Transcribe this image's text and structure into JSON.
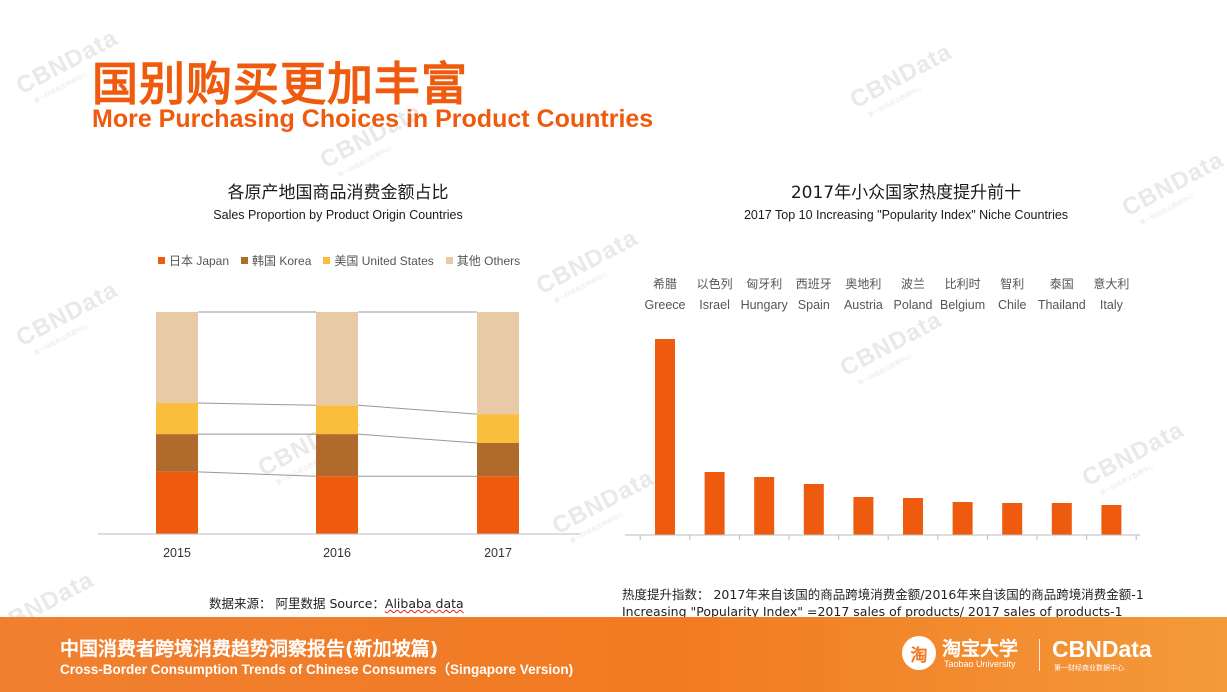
{
  "header": {
    "title_cn": "国别购买更加丰富",
    "title_en": "More Purchasing Choices in Product Countries"
  },
  "watermark": {
    "text": "CBNData",
    "subtext": "第一财经商业数据中心"
  },
  "left_chart": {
    "title_cn": "各原产地国商品消费金额占比",
    "title_en": "Sales Proportion by Product Origin Countries",
    "source": "数据来源： 阿里数据  Source：Alibaba data",
    "source_prefix": "数据来源： 阿里数据  Source：",
    "source_underlined": "Alibaba data"
  },
  "right_chart": {
    "title_cn": "2017年小众国家热度提升前十",
    "title_en": "2017 Top 10 Increasing \"Popularity Index\" Niche Countries",
    "formula_cn": "热度提升指数：  2017年来自该国的商品跨境消费金额/2016年来自该国的商品跨境消费金额-1",
    "formula_en": "Increasing \"Popularity Index\" =2017 sales of products/ 2017 sales of products-1"
  },
  "footer": {
    "title_cn": "中国消费者跨境消费趋势洞察报告(新加坡篇)",
    "title_en": "Cross-Border Consumption Trends of Chinese Consumers（Singapore Version)",
    "logo_icon": "淘",
    "logo_taobao_cn": "淘宝大学",
    "logo_taobao_en": "Taobao University",
    "logo_cbn": "CBNData",
    "logo_cbn_sub": "第一财经商业数据中心"
  },
  "colors": {
    "accent": "#ee5a0e",
    "japan": "#ee5a0e",
    "korea": "#b06a2c",
    "us": "#fbbd3c",
    "others": "#e8cba6",
    "bar": "#ee5a0e"
  },
  "chart_data": [
    {
      "type": "bar",
      "stacked": true,
      "percent": true,
      "title": "各原产地国商品消费金额占比",
      "subtitle": "Sales Proportion by Product Origin Countries",
      "categories": [
        "2015",
        "2016",
        "2017"
      ],
      "ylim": [
        0,
        100
      ],
      "legend_position": "top",
      "connector_lines": true,
      "series": [
        {
          "name": "日本 Japan",
          "color": "#ee5a0e",
          "values": [
            28,
            26,
            26
          ]
        },
        {
          "name": "韩国 Korea",
          "color": "#b06a2c",
          "values": [
            17,
            19,
            15
          ]
        },
        {
          "name": "美国 United States",
          "color": "#fbbd3c",
          "values": [
            14,
            13,
            13
          ]
        },
        {
          "name": "其他 Others",
          "color": "#e8cba6",
          "values": [
            41,
            42,
            46
          ]
        }
      ]
    },
    {
      "type": "bar",
      "title": "2017年小众国家热度提升前十",
      "subtitle": "2017 Top 10 Increasing \"Popularity Index\" Niche Countries",
      "categories_cn": [
        "希腊",
        "以色列",
        "匈牙利",
        "西班牙",
        "奥地利",
        "波兰",
        "比利时",
        "智利",
        "泰国",
        "意大利"
      ],
      "categories": [
        "Greece",
        "Israel",
        "Hungary",
        "Spain",
        "Austria",
        "Poland",
        "Belgium",
        "Chile",
        "Thailand",
        "Italy"
      ],
      "values": [
        196,
        63,
        58,
        51,
        38,
        37,
        33,
        32,
        32,
        30
      ],
      "value_scale": "relative",
      "ylim": [
        0,
        200
      ],
      "color": "#ee5a0e"
    }
  ]
}
